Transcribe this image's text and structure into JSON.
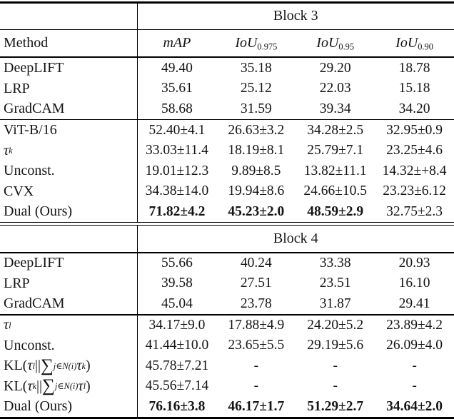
{
  "colors": {
    "text": "#151515",
    "rule": "#000000",
    "background": "#ffffff"
  },
  "table": {
    "header": {
      "method_label": "Method",
      "columns": [
        "*mAP*",
        "*IoU*_0.975_",
        "*IoU*_0.95_",
        "*IoU*_0.90_"
      ]
    },
    "blocks": [
      {
        "title": "Block 3",
        "sections": [
          {
            "rows": [
              {
                "label": "DeepLIFT",
                "cells": [
                  "49.40",
                  "35.18",
                  "29.20",
                  "18.78"
                ]
              },
              {
                "label": "LRP",
                "cells": [
                  "35.61",
                  "25.12",
                  "22.03",
                  "15.18"
                ]
              },
              {
                "label": "GradCAM",
                "cells": [
                  "58.68",
                  "31.59",
                  "39.34",
                  "34.20"
                ]
              }
            ]
          },
          {
            "rows": [
              {
                "label": "ViT-B/16",
                "cells": [
                  "52.40±4.1",
                  "26.63±3.2",
                  "34.28±2.5",
                  "32.95±0.9"
                ]
              },
              {
                "label": "*τ^k^*",
                "cells": [
                  "33.03±11.4",
                  "18.19±8.1",
                  "25.79±7.1",
                  "23.25±4.6"
                ]
              },
              {
                "label": "Unconst.",
                "cells": [
                  "19.01±12.3",
                  "9.89±8.5",
                  "13.82±11.1",
                  "14.32±+8.4"
                ]
              },
              {
                "label": "CVX",
                "cells": [
                  "34.38±14.0",
                  "19.94±8.6",
                  "24.66±10.5",
                  "23.23±6.12"
                ]
              },
              {
                "label": "Dual (Ours)",
                "cells": [
                  "71.82±4.2",
                  "45.23±2.0",
                  "48.59±2.9",
                  "32.75±2.3"
                ],
                "bold": [
                  true,
                  true,
                  true,
                  false
                ]
              }
            ]
          }
        ]
      },
      {
        "title": "Block 4",
        "sections": [
          {
            "rows": [
              {
                "label": "DeepLIFT",
                "cells": [
                  "55.66",
                  "40.24",
                  "33.38",
                  "20.93"
                ]
              },
              {
                "label": "LRP",
                "cells": [
                  "39.58",
                  "27.51",
                  "23.51",
                  "16.10"
                ]
              },
              {
                "label": "GradCAM",
                "cells": [
                  "45.04",
                  "23.78",
                  "31.87",
                  "29.41"
                ]
              }
            ]
          },
          {
            "rows": [
              {
                "label": "*τ^l^*",
                "cells": [
                  "34.17±9.0",
                  "17.88±4.9",
                  "24.20±5.2",
                  "23.89±4.2"
                ]
              },
              {
                "label": "Unconst.",
                "cells": [
                  "41.44±10.0",
                  "23.65±5.5",
                  "29.19±5.6",
                  "26.09±4.0"
                ]
              },
              {
                "label": "KL(*τ^l^*||§∑§_*j∈N(i)*_ *τ^k^*)",
                "cells": [
                  "45.78±7.21",
                  "-",
                  "-",
                  "-"
                ]
              },
              {
                "label": "KL(*τ^k^*||§∑§_*j∈N(i)*_ *τ^l^*)",
                "cells": [
                  "45.56±7.14",
                  "-",
                  "-",
                  "-"
                ]
              },
              {
                "label": "Dual (Ours)",
                "cells": [
                  "76.16±3.8",
                  "46.17±1.7",
                  "51.29±2.7",
                  "34.64±2.0"
                ],
                "bold": [
                  true,
                  true,
                  true,
                  true
                ]
              }
            ]
          }
        ]
      }
    ]
  }
}
